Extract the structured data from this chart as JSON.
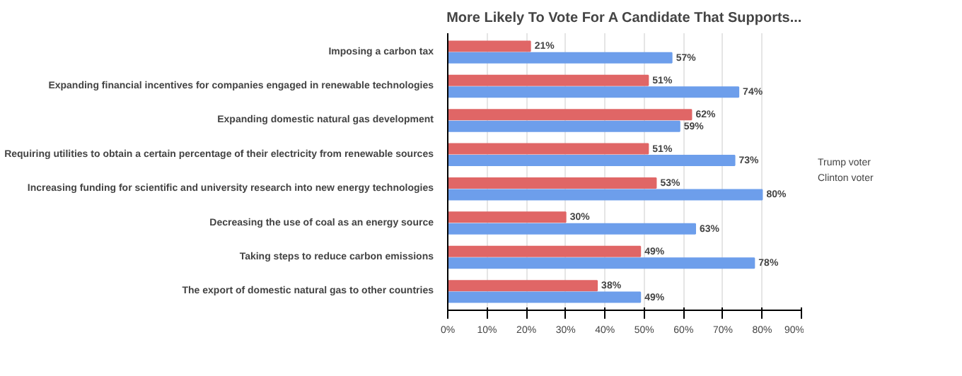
{
  "chart_data": {
    "type": "bar",
    "orientation": "horizontal",
    "title": "More Likely To Vote For A Candidate That Supports...",
    "categories": [
      "Imposing a carbon tax",
      "Expanding financial incentives for companies engaged in renewable technologies",
      "Expanding domestic natural gas development",
      "Requiring utilities to obtain a certain percentage of their electricity from renewable sources",
      "Increasing funding for scientific and university research into new energy technologies",
      "Decreasing the use of coal as an energy source",
      "Taking steps to reduce carbon emissions",
      "The export of domestic natural gas to other countries"
    ],
    "series": [
      {
        "name": "Trump voter",
        "color": "#e06666",
        "values": [
          21,
          51,
          62,
          51,
          53,
          30,
          49,
          38
        ],
        "value_labels": [
          "21%",
          "51%",
          "62%",
          "51%",
          "53%",
          "30%",
          "49%",
          "38%"
        ]
      },
      {
        "name": "Clinton voter",
        "color": "#6d9eeb",
        "values": [
          57,
          74,
          59,
          73,
          80,
          63,
          78,
          49
        ],
        "value_labels": [
          "57%",
          "74%",
          "59%",
          "73%",
          "80%",
          "63%",
          "78%",
          "49%"
        ]
      }
    ],
    "xlim": [
      0,
      90
    ],
    "xticks": [
      {
        "value": 0,
        "label": "0%"
      },
      {
        "value": 10,
        "label": "10%"
      },
      {
        "value": 20,
        "label": "20%"
      },
      {
        "value": 30,
        "label": "30%"
      },
      {
        "value": 40,
        "label": "40%"
      },
      {
        "value": 50,
        "label": "50%"
      },
      {
        "value": 60,
        "label": "60%"
      },
      {
        "value": 70,
        "label": "70%"
      },
      {
        "value": 80,
        "label": "80%"
      },
      {
        "value": 90,
        "label": "90%"
      }
    ],
    "grid": "x",
    "legend": "right"
  }
}
